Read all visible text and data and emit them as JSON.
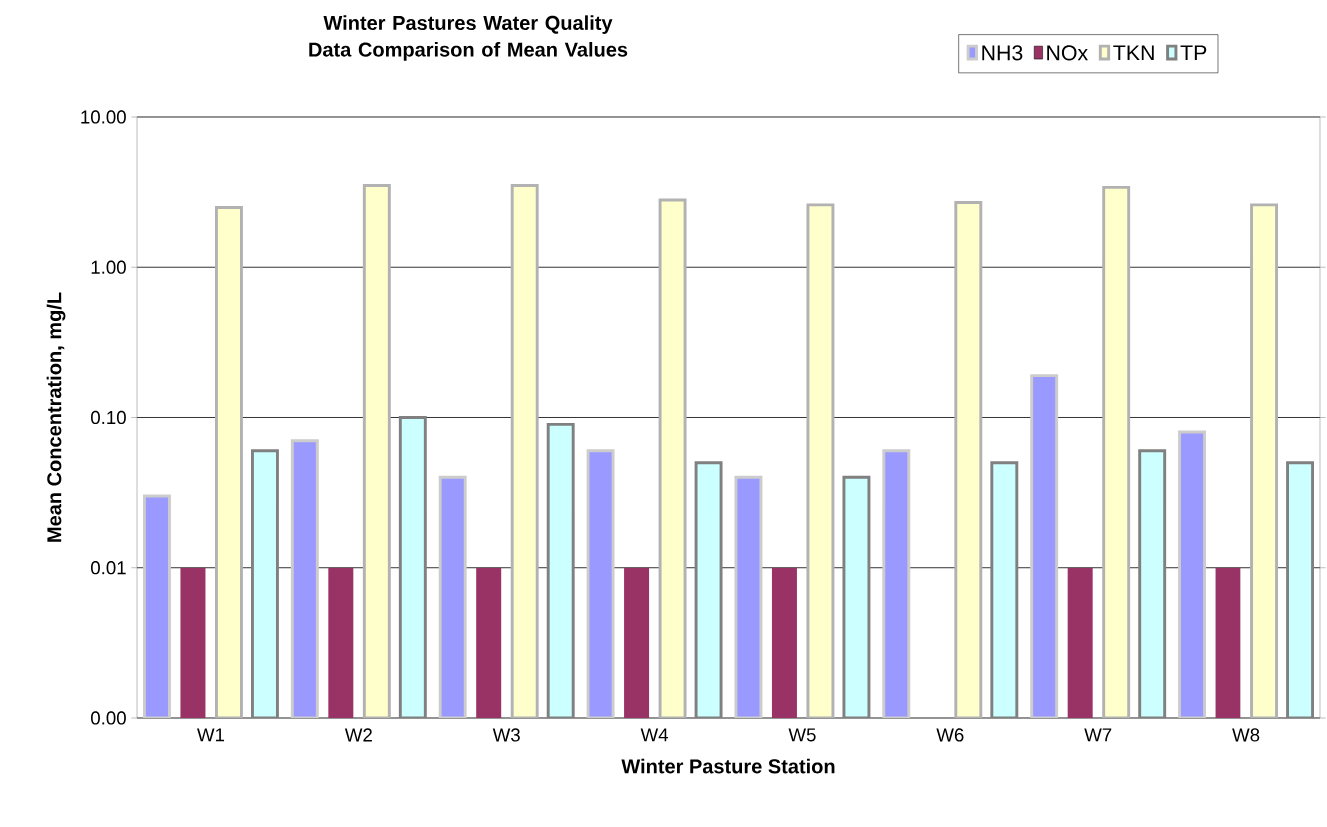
{
  "chart_data": {
    "type": "bar",
    "title": "Winter Pastures Water Quality Data Comparison of Mean Values",
    "xlabel": "Winter Pasture Station",
    "ylabel": "Mean Concentration, mg/L",
    "categories": [
      "W1",
      "W2",
      "W3",
      "W4",
      "W5",
      "W6",
      "W7",
      "W8"
    ],
    "series": [
      {
        "name": "NH3",
        "color": "#9999ff",
        "values": [
          0.03,
          0.07,
          0.04,
          0.06,
          0.04,
          0.06,
          0.19,
          0.08
        ]
      },
      {
        "name": "NOx",
        "color": "#993366",
        "values": [
          0.01,
          0.01,
          0.01,
          0.01,
          0.01,
          null,
          0.01,
          0.01
        ]
      },
      {
        "name": "TKN",
        "color": "#ffffcc",
        "values": [
          2.5,
          3.5,
          3.5,
          2.8,
          2.6,
          2.7,
          3.4,
          2.6
        ]
      },
      {
        "name": "TP",
        "color": "#ccffff",
        "values": [
          0.06,
          0.1,
          0.09,
          0.05,
          0.04,
          0.05,
          0.06,
          0.05
        ]
      }
    ],
    "log": "y",
    "ylim": [
      0.001,
      10
    ],
    "yticks": [
      {
        "value": 0.001,
        "label": "0.00"
      },
      {
        "value": 0.01,
        "label": "0.01"
      },
      {
        "value": 0.1,
        "label": "0.10"
      },
      {
        "value": 1,
        "label": "1.00"
      },
      {
        "value": 10,
        "label": "10.00"
      }
    ],
    "grid": "y",
    "legend": "top right"
  }
}
